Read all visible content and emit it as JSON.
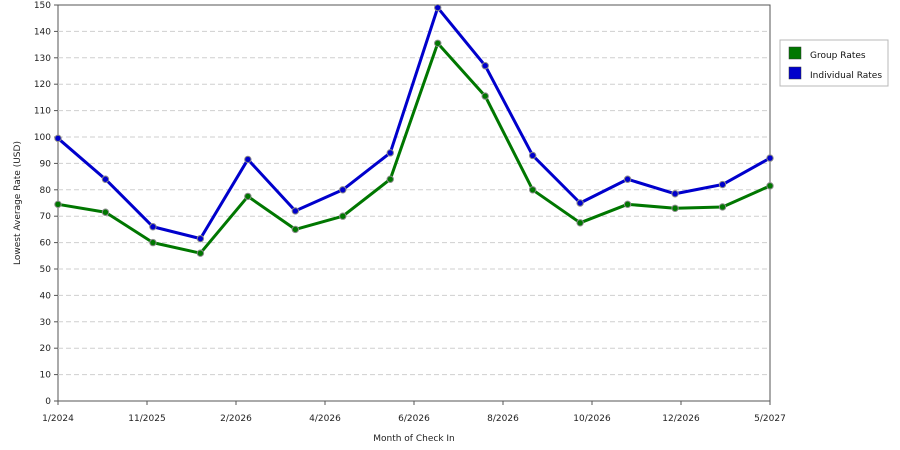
{
  "chart_data": {
    "type": "line",
    "x_tick_labels": [
      "1/2024",
      "11/2025",
      "2/2026",
      "4/2026",
      "6/2026",
      "8/2026",
      "10/2026",
      "12/2026",
      "5/2027"
    ],
    "xlabel": "Month of Check In",
    "ylabel": "Lowest Average Rate (USD)",
    "ylim": [
      0,
      150
    ],
    "y_ticks": [
      0,
      10,
      20,
      30,
      40,
      50,
      60,
      70,
      80,
      90,
      100,
      110,
      120,
      130,
      140,
      150
    ],
    "grid": true,
    "legend_position": "right",
    "series": [
      {
        "name": "Group Rates",
        "color": "#007700",
        "values": [
          74.5,
          71.5,
          60,
          56,
          77.5,
          65,
          70,
          84,
          135.5,
          115.5,
          80,
          67.5,
          74.5,
          73,
          73.5,
          81.5
        ]
      },
      {
        "name": "Individual Rates",
        "color": "#0000CC",
        "values": [
          99.5,
          84,
          66,
          61.5,
          91.5,
          72,
          80,
          94,
          149,
          127,
          93,
          75,
          84,
          78.5,
          82,
          92
        ]
      }
    ]
  }
}
